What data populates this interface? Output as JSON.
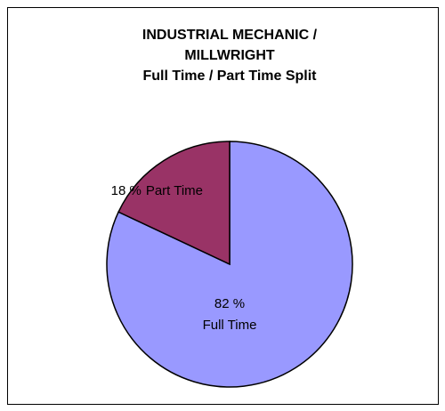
{
  "chart_data": {
    "type": "pie",
    "title": [
      "INDUSTRIAL MECHANIC /",
      "MILLWRIGHT"
    ],
    "subtitle": "Full Time / Part Time Split",
    "categories": [
      "Full Time",
      "Part Time"
    ],
    "values": [
      82,
      18
    ],
    "value_labels": [
      "82 %",
      "18 %"
    ],
    "colors": [
      "#9999ff",
      "#993366"
    ]
  }
}
